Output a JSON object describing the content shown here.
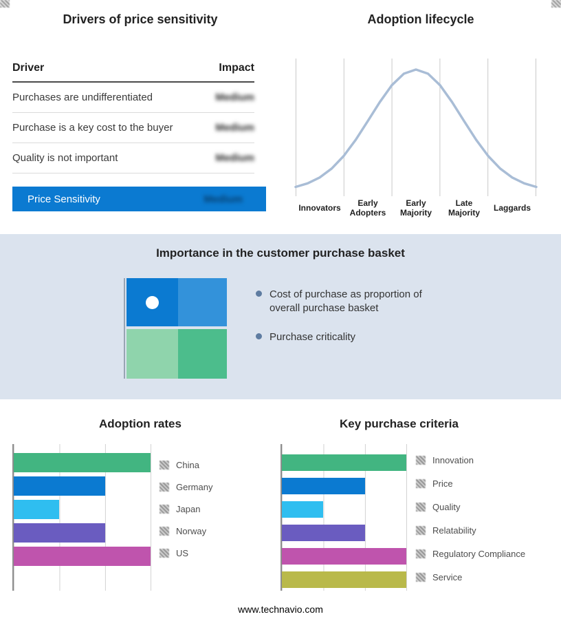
{
  "sections": {
    "drivers": {
      "title": "Drivers of price sensitivity",
      "col_driver": "Driver",
      "col_impact": "Impact",
      "rows": [
        {
          "driver": "Purchases are undifferentiated",
          "impact": "Medium"
        },
        {
          "driver": "Purchase is a key cost to the buyer",
          "impact": "Medium"
        },
        {
          "driver": "Quality is not important",
          "impact": "Medium"
        }
      ],
      "highlight": {
        "driver": "Price Sensitivity",
        "impact": "Medium",
        "color": "#0b7ad1"
      }
    },
    "basket": {
      "title": "Importance in the customer purchase basket",
      "bullets": [
        "Cost of purchase as proportion of overall purchase basket",
        "Purchase criticality"
      ],
      "quadrant_colors": {
        "top_left": "#0b7ad1",
        "top_right": "#3392da",
        "bottom_left": "#8fd4ac",
        "bottom_right": "#4cbd8c"
      },
      "background": "#dbe3ee"
    },
    "footer": "www.technavio.com"
  },
  "chart_data": [
    {
      "type": "line",
      "title": "Adoption lifecycle",
      "x_labels": [
        "Innovators",
        "Early Adopters",
        "Early Majority",
        "Late Majority",
        "Laggards"
      ],
      "curve": {
        "x": [
          0,
          0.05,
          0.1,
          0.15,
          0.2,
          0.25,
          0.3,
          0.35,
          0.4,
          0.45,
          0.5,
          0.55,
          0.6,
          0.65,
          0.7,
          0.75,
          0.8,
          0.85,
          0.9,
          0.95,
          1
        ],
        "y": [
          0.031,
          0.061,
          0.109,
          0.183,
          0.287,
          0.421,
          0.575,
          0.732,
          0.871,
          0.966,
          1,
          0.966,
          0.871,
          0.732,
          0.575,
          0.421,
          0.287,
          0.183,
          0.109,
          0.061,
          0.031
        ]
      },
      "ylim": [
        0,
        1
      ],
      "color": "#a9bdd6",
      "grid": "vertical, one line per stage boundary",
      "legend_position": "none"
    },
    {
      "type": "bar",
      "orientation": "horizontal",
      "title": "Adoption rates",
      "categories": [
        "China",
        "Germany",
        "Japan",
        "Norway",
        "US"
      ],
      "values": [
        3,
        2,
        1,
        2,
        3
      ],
      "xmax": 3,
      "colors": [
        "#42b581",
        "#0b7ad1",
        "#2fbef0",
        "#6a5cc0",
        "#bf54ad"
      ],
      "grid": "vertical gridlines at 1, 2, 3 (unlabeled)",
      "legend_position": "right"
    },
    {
      "type": "bar",
      "orientation": "horizontal",
      "title": "Key purchase criteria",
      "categories": [
        "Innovation",
        "Price",
        "Quality",
        "Relatability",
        "Regulatory Compliance",
        "Service"
      ],
      "values": [
        3,
        2,
        1,
        2,
        3,
        3
      ],
      "xmax": 3,
      "colors": [
        "#42b581",
        "#0b7ad1",
        "#2fbef0",
        "#6a5cc0",
        "#bf54ad",
        "#b9b94a"
      ],
      "grid": "vertical gridlines at 1, 2, 3 (unlabeled)",
      "legend_position": "right"
    }
  ]
}
